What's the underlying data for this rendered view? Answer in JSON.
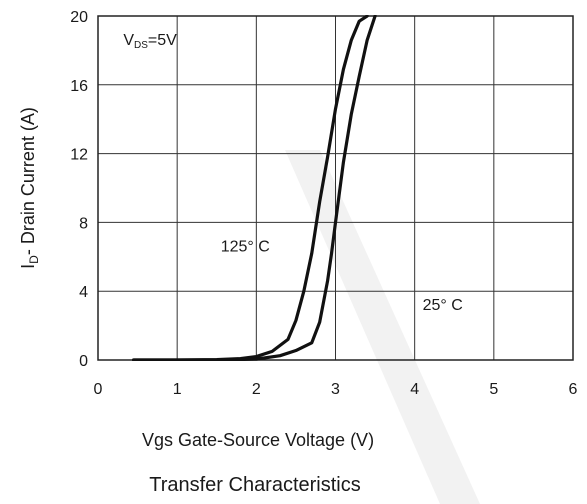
{
  "chart_data": {
    "type": "line",
    "title": "Transfer Characteristics",
    "xlabel": "Vgs Gate-Source Voltage (V)",
    "ylabel": {
      "prefix": "I",
      "sub": "D",
      "rest": "- Drain Current (A)"
    },
    "xlim": [
      0,
      6
    ],
    "ylim": [
      0,
      20
    ],
    "xticks": [
      0,
      1,
      2,
      3,
      4,
      5,
      6
    ],
    "yticks": [
      0,
      4,
      8,
      12,
      16,
      20
    ],
    "grid": true,
    "annotations": [
      {
        "id": "vds",
        "prefix": "V",
        "sub": "DS",
        "rest": "=5V",
        "x": 0.32,
        "y": 18.3
      },
      {
        "id": "t125",
        "text": "125° C",
        "x": 1.55,
        "y": 6.3
      },
      {
        "id": "t25",
        "text": "25° C",
        "x": 4.1,
        "y": 2.9
      }
    ],
    "series": [
      {
        "id": "125C",
        "label": "125° C",
        "color": "#111111",
        "x": [
          0.45,
          1.0,
          1.5,
          1.8,
          2.0,
          2.2,
          2.4,
          2.5,
          2.6,
          2.7,
          2.8,
          2.9,
          3.0,
          3.1,
          3.2,
          3.3,
          3.4
        ],
        "y": [
          0.0,
          0.0,
          0.02,
          0.08,
          0.2,
          0.5,
          1.2,
          2.3,
          4.0,
          6.2,
          9.2,
          11.8,
          14.6,
          16.9,
          18.6,
          19.7,
          20.0
        ]
      },
      {
        "id": "25C",
        "label": "25° C",
        "color": "#111111",
        "x": [
          0.45,
          1.5,
          2.0,
          2.3,
          2.5,
          2.7,
          2.8,
          2.9,
          2.95,
          3.0,
          3.1,
          3.2,
          3.3,
          3.4,
          3.5
        ],
        "y": [
          0.0,
          0.0,
          0.05,
          0.25,
          0.55,
          1.0,
          2.2,
          4.6,
          6.2,
          8.0,
          11.5,
          14.3,
          16.5,
          18.6,
          20.0
        ]
      }
    ]
  }
}
